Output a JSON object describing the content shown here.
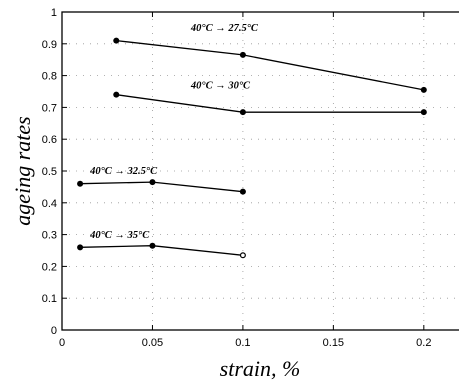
{
  "chart_data": {
    "type": "line",
    "title": "",
    "xlabel": "strain, %",
    "ylabel": "ageing rates",
    "xlim": [
      0,
      0.22
    ],
    "ylim": [
      0,
      1
    ],
    "x_ticks": [
      0,
      0.05,
      0.1,
      0.15,
      0.2
    ],
    "x_tick_labels": [
      "0",
      "0.05",
      "0.1",
      "0.15",
      "0.2"
    ],
    "y_ticks": [
      0,
      0.1,
      0.2,
      0.3,
      0.4,
      0.5,
      0.6,
      0.7,
      0.8,
      0.9,
      1
    ],
    "y_tick_labels": [
      "0",
      "0.1",
      "0.2",
      "0.3",
      "0.4",
      "0.5",
      "0.6",
      "0.7",
      "0.8",
      "0.9",
      "1"
    ],
    "grid": "dotted",
    "series": [
      {
        "name": "40°C → 27.5°C",
        "x": [
          0.03,
          0.1,
          0.2
        ],
        "y": [
          0.91,
          0.865,
          0.755
        ],
        "open_points": []
      },
      {
        "name": "40°C → 30°C",
        "x": [
          0.03,
          0.1,
          0.2
        ],
        "y": [
          0.74,
          0.685,
          0.685
        ],
        "open_points": []
      },
      {
        "name": "40°C → 32.5°C",
        "x": [
          0.01,
          0.05,
          0.1
        ],
        "y": [
          0.46,
          0.465,
          0.435
        ],
        "open_points": []
      },
      {
        "name": "40°C → 35°C",
        "x": [
          0.01,
          0.05,
          0.1
        ],
        "y": [
          0.26,
          0.265,
          0.235
        ],
        "open_points": [
          2
        ]
      }
    ]
  }
}
